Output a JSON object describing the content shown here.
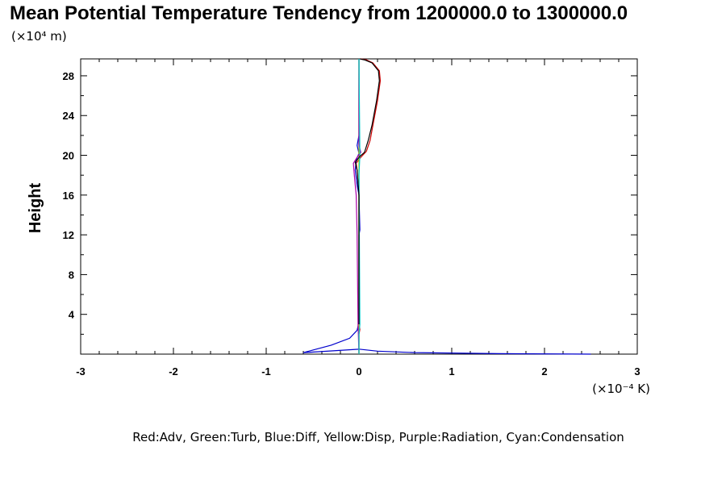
{
  "chart_data": {
    "type": "line",
    "title": "Mean Potential Temperature Tendency from 1200000.0 to 1300000.0",
    "y_unit_label": "(×10⁴ m)",
    "x_unit_label": "(×10⁻⁴ K)",
    "ylabel": "Height",
    "xlabel": "",
    "xlim": [
      -3,
      3
    ],
    "ylim": [
      0,
      29.7
    ],
    "xticks": [
      "-3",
      "-2",
      "-1",
      "0",
      "1",
      "2",
      "3"
    ],
    "xtick_values": [
      -3,
      -2,
      -1,
      0,
      1,
      2,
      3
    ],
    "yticks": [
      "4",
      "8",
      "12",
      "16",
      "20",
      "24",
      "28"
    ],
    "ytick_values": [
      4,
      8,
      12,
      16,
      20,
      24,
      28
    ],
    "legend_text": "Red:Adv, Green:Turb, Blue:Diff, Yellow:Disp, Purple:Radiation, Cyan:Condensation",
    "series": [
      {
        "color": "#cc0000",
        "points": [
          [
            0,
            0
          ],
          [
            0,
            2
          ],
          [
            0.01,
            2.5
          ],
          [
            0,
            3
          ],
          [
            0,
            12
          ],
          [
            0,
            16
          ],
          [
            -0.02,
            18.5
          ],
          [
            -0.03,
            19.2
          ],
          [
            0.02,
            19.8
          ],
          [
            0.08,
            20.4
          ],
          [
            0.12,
            21.5
          ],
          [
            0.15,
            23
          ],
          [
            0.2,
            25.5
          ],
          [
            0.23,
            27.5
          ],
          [
            0.22,
            28.5
          ],
          [
            0.15,
            29.3
          ],
          [
            0.08,
            29.6
          ],
          [
            0.02,
            29.7
          ]
        ]
      },
      {
        "color": "#00aa00",
        "points": [
          [
            0,
            0
          ],
          [
            0,
            29.7
          ]
        ]
      },
      {
        "color": "#0000cc",
        "points": [
          [
            2.5,
            0
          ],
          [
            1.5,
            0.05
          ],
          [
            0.6,
            0.15
          ],
          [
            0.2,
            0.3
          ],
          [
            0,
            0.5
          ],
          [
            -0.6,
            0.15
          ],
          [
            -0.5,
            0.4
          ],
          [
            -0.3,
            0.9
          ],
          [
            -0.1,
            1.6
          ],
          [
            -0.02,
            2.4
          ],
          [
            0,
            3.2
          ],
          [
            0,
            12
          ],
          [
            0.01,
            12.5
          ],
          [
            0,
            16
          ],
          [
            -0.02,
            17
          ],
          [
            -0.04,
            18.5
          ],
          [
            -0.03,
            19.5
          ],
          [
            0,
            20.2
          ],
          [
            -0.02,
            21
          ],
          [
            0,
            22
          ],
          [
            0,
            29.7
          ]
        ]
      },
      {
        "color": "#cccc00",
        "points": [
          [
            0,
            0
          ],
          [
            0,
            29.7
          ]
        ]
      },
      {
        "color": "#aa00aa",
        "points": [
          [
            0,
            0
          ],
          [
            -0.01,
            3
          ],
          [
            -0.02,
            12
          ],
          [
            -0.03,
            16
          ],
          [
            -0.05,
            18
          ],
          [
            -0.06,
            19.2
          ],
          [
            -0.02,
            19.8
          ],
          [
            0.02,
            20.3
          ],
          [
            0,
            21
          ],
          [
            0,
            29.7
          ]
        ]
      },
      {
        "color": "#00cccc",
        "points": [
          [
            0,
            0
          ],
          [
            0,
            2
          ],
          [
            0.01,
            3
          ],
          [
            0,
            18
          ],
          [
            0.01,
            20
          ],
          [
            0,
            29.7
          ]
        ]
      },
      {
        "color": "#000000",
        "points": [
          [
            0,
            3
          ],
          [
            0,
            12
          ],
          [
            0,
            16
          ],
          [
            -0.02,
            18.5
          ],
          [
            -0.04,
            19.3
          ],
          [
            0.01,
            19.9
          ],
          [
            0.06,
            20.3
          ],
          [
            0.1,
            21.5
          ],
          [
            0.14,
            23
          ],
          [
            0.19,
            25.5
          ],
          [
            0.22,
            27.5
          ],
          [
            0.21,
            28.5
          ],
          [
            0.14,
            29.3
          ],
          [
            0.06,
            29.6
          ],
          [
            0.01,
            29.7
          ]
        ]
      }
    ]
  }
}
